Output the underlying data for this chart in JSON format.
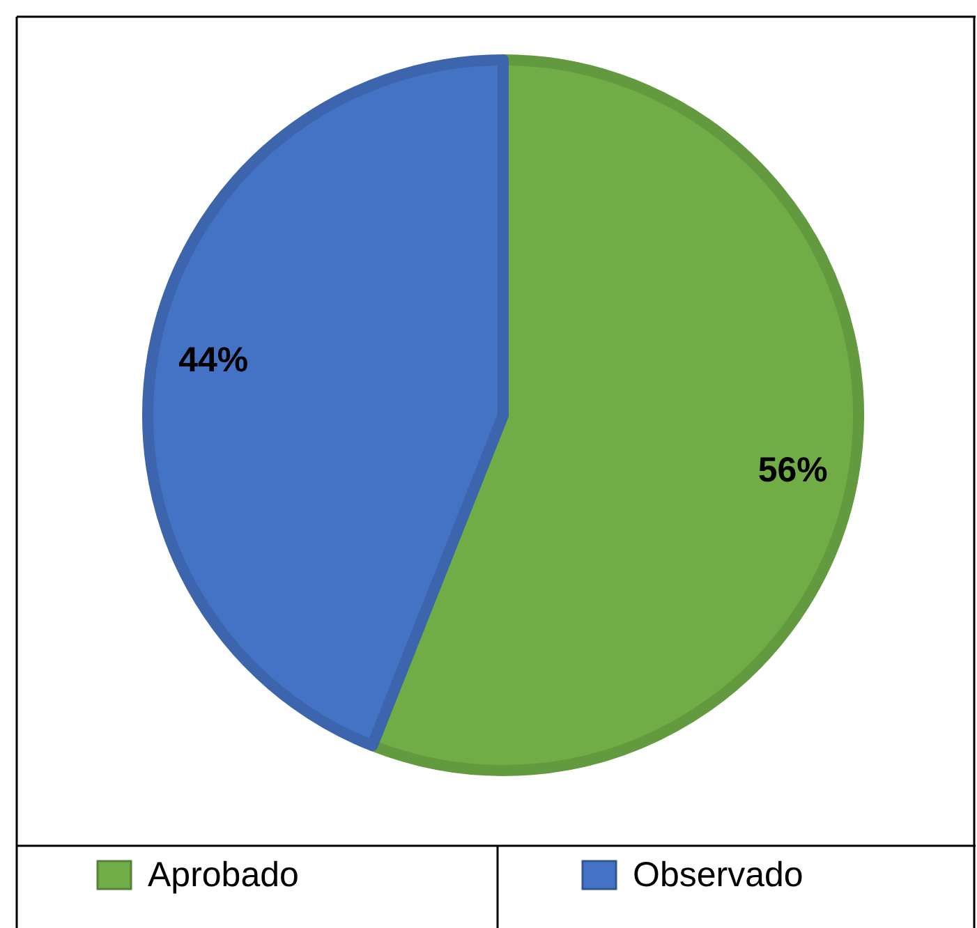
{
  "chart_data": {
    "type": "pie",
    "categories": [
      "Aprobado",
      "Observado"
    ],
    "values": [
      56,
      44
    ],
    "colors": [
      "#70ad47",
      "#4472c4"
    ],
    "value_labels": [
      "56%",
      "44%"
    ],
    "legend": "bottom"
  }
}
